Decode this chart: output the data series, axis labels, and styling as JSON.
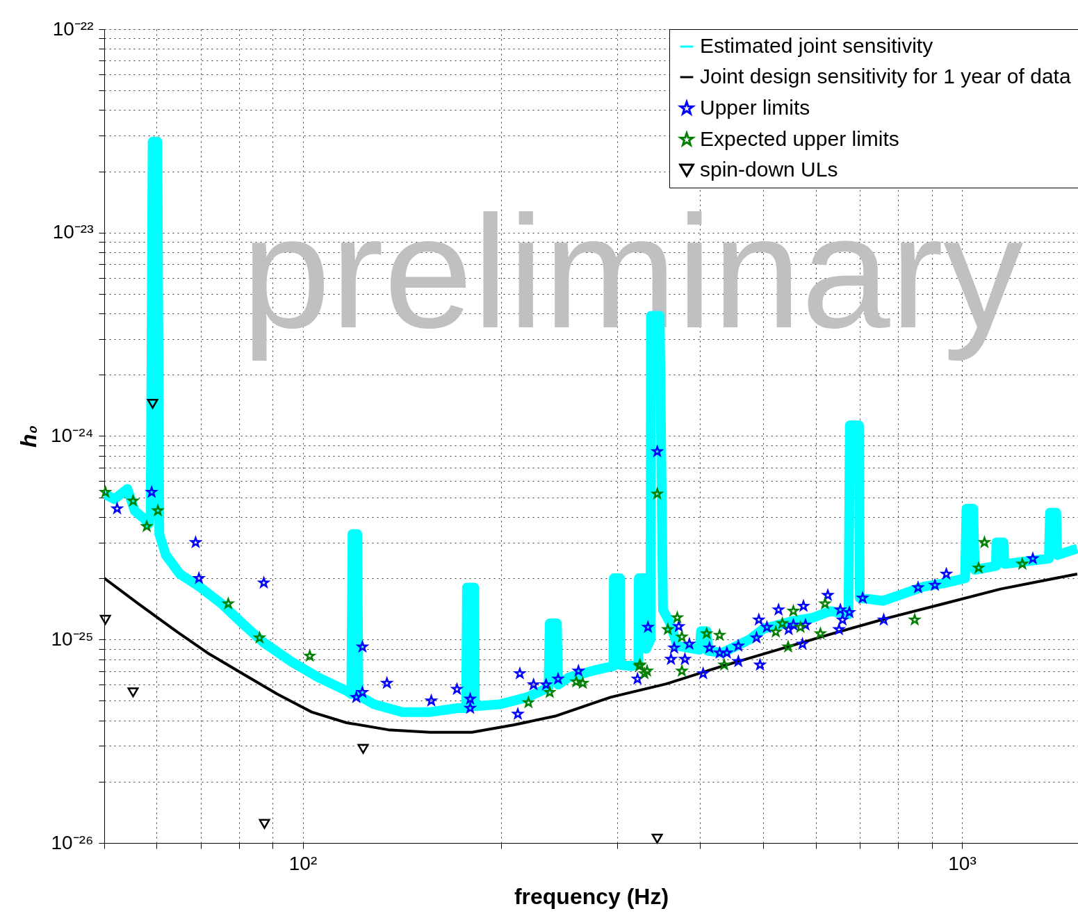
{
  "chart_data": {
    "type": "line",
    "xlabel": "frequency (Hz)",
    "ylabel": "h₀",
    "annotations": [
      "preliminary"
    ],
    "log": "xy",
    "grid": true,
    "legend": "top right",
    "xlim": [
      50,
      1500
    ],
    "ylim": [
      1e-26,
      1e-22
    ],
    "xticks": [
      {
        "value": 50,
        "label": null
      },
      {
        "value": 60,
        "label": null
      },
      {
        "value": 70,
        "label": null
      },
      {
        "value": 80,
        "label": null
      },
      {
        "value": 90,
        "label": null
      },
      {
        "value": 100,
        "label": "10²"
      },
      {
        "value": 200,
        "label": null
      },
      {
        "value": 300,
        "label": null
      },
      {
        "value": 400,
        "label": null
      },
      {
        "value": 500,
        "label": null
      },
      {
        "value": 600,
        "label": null
      },
      {
        "value": 700,
        "label": null
      },
      {
        "value": 800,
        "label": null
      },
      {
        "value": 900,
        "label": null
      },
      {
        "value": 1000,
        "label": "10³"
      }
    ],
    "yticks": [
      {
        "value": 1e-26,
        "label": "10⁻²⁶"
      },
      {
        "value": 2e-26,
        "label": null
      },
      {
        "value": 3e-26,
        "label": null
      },
      {
        "value": 4e-26,
        "label": null
      },
      {
        "value": 5e-26,
        "label": null
      },
      {
        "value": 6e-26,
        "label": null
      },
      {
        "value": 7e-26,
        "label": null
      },
      {
        "value": 8e-26,
        "label": null
      },
      {
        "value": 9e-26,
        "label": null
      },
      {
        "value": 1e-25,
        "label": "10⁻²⁵"
      },
      {
        "value": 2e-25,
        "label": null
      },
      {
        "value": 3e-25,
        "label": null
      },
      {
        "value": 4e-25,
        "label": null
      },
      {
        "value": 5e-25,
        "label": null
      },
      {
        "value": 6e-25,
        "label": null
      },
      {
        "value": 7e-25,
        "label": null
      },
      {
        "value": 8e-25,
        "label": null
      },
      {
        "value": 9e-25,
        "label": null
      },
      {
        "value": 1e-24,
        "label": "10⁻²⁴"
      },
      {
        "value": 2e-24,
        "label": null
      },
      {
        "value": 3e-24,
        "label": null
      },
      {
        "value": 4e-24,
        "label": null
      },
      {
        "value": 5e-24,
        "label": null
      },
      {
        "value": 6e-24,
        "label": null
      },
      {
        "value": 7e-24,
        "label": null
      },
      {
        "value": 8e-24,
        "label": null
      },
      {
        "value": 9e-24,
        "label": null
      },
      {
        "value": 1e-23,
        "label": "10⁻²³"
      },
      {
        "value": 2e-23,
        "label": null
      },
      {
        "value": 3e-23,
        "label": null
      },
      {
        "value": 4e-23,
        "label": null
      },
      {
        "value": 5e-23,
        "label": null
      },
      {
        "value": 6e-23,
        "label": null
      },
      {
        "value": 7e-23,
        "label": null
      },
      {
        "value": 8e-23,
        "label": null
      },
      {
        "value": 9e-23,
        "label": null
      },
      {
        "value": 1e-22,
        "label": "10⁻²²"
      }
    ],
    "series": [
      {
        "name": "Estimated joint sensitivity",
        "marker": "none",
        "color": "#00ffff",
        "x": [
          50,
          51.8,
          54.2,
          55.6,
          57.6,
          58.4,
          58.8,
          59.2,
          60.2,
          60.6,
          62.0,
          65.1,
          70.0,
          75.3,
          81.0,
          87.1,
          96.0,
          105.7,
          116.5,
          118.5,
          119,
          121,
          121.5,
          128.4,
          141.6,
          156,
          171.9,
          177,
          177.5,
          182,
          182.5,
          199,
          219,
          236,
          237,
          243,
          244,
          253,
          279,
          296,
          296.5,
          303,
          303.5,
          315,
          323,
          323.5,
          331,
          332,
          337,
          337.5,
          348,
          352,
          361,
          370,
          400,
          402,
          410,
          412,
          433,
          476,
          500,
          552,
          594,
          632,
          673,
          676,
          698,
          700,
          759,
          815,
          875,
          938,
          1011,
          1016,
          1040,
          1046,
          1126,
          1128,
          1156,
          1160,
          1355,
          1360,
          1390,
          1395,
          1496
        ],
        "values": [
          5.2e-25,
          4.9e-25,
          5.5e-25,
          4.3e-25,
          3.9e-25,
          3.7e-25,
          4.2e-25,
          2.8e-23,
          2.8e-23,
          3.3e-25,
          2.6e-25,
          2.1e-25,
          1.8e-25,
          1.5e-25,
          1.2e-25,
          9.7e-26,
          7.8e-26,
          6.5e-26,
          5.6e-26,
          5.4e-26,
          3.3e-25,
          3.3e-25,
          5.3e-26,
          4.8e-26,
          4.4e-26,
          4.4e-26,
          4.6e-26,
          4.6e-26,
          1.8e-25,
          1.8e-25,
          4.7e-26,
          4.8e-26,
          5.2e-26,
          5.8e-26,
          1.2e-25,
          1.2e-25,
          6e-26,
          6.5e-26,
          7.1e-26,
          7.4e-26,
          2e-25,
          2e-25,
          7.5e-26,
          7.4e-26,
          7.6e-26,
          2e-25,
          2e-25,
          9e-26,
          1e-25,
          3.9e-24,
          3.9e-24,
          1.4e-25,
          1.2e-25,
          9.3e-26,
          8.9e-26,
          1.1e-25,
          1.1e-25,
          8.8e-26,
          8.6e-26,
          1e-25,
          1.13e-25,
          1.23e-25,
          1.28e-25,
          1.38e-25,
          1.33e-25,
          1.13e-24,
          1.13e-24,
          1.6e-25,
          1.55e-25,
          1.68e-25,
          1.82e-25,
          1.89e-25,
          2e-25,
          4.4e-25,
          4.4e-25,
          2.2e-25,
          2.3e-25,
          3e-25,
          3e-25,
          2.35e-25,
          2.5e-25,
          4.2e-25,
          4.2e-25,
          2.6e-25,
          2.8e-25
        ]
      },
      {
        "name": "Joint design sensitivity for 1 year of data",
        "marker": "none",
        "color": "#000000",
        "x": [
          50,
          56.3,
          63.5,
          71.7,
          81.0,
          91.4,
          103.2,
          116.5,
          134.8,
          156,
          180.6,
          208.7,
          241.5,
          293,
          356,
          433,
          525,
          637,
          775,
          938,
          1144,
          1496
        ],
        "values": [
          2e-25,
          1.5e-25,
          1.13e-25,
          8.6e-26,
          6.8e-26,
          5.4e-26,
          4.4e-26,
          3.9e-26,
          3.6e-26,
          3.5e-26,
          3.5e-26,
          3.8e-26,
          4.2e-26,
          5.2e-26,
          6.05e-26,
          7.4e-26,
          8.9e-26,
          1.07e-25,
          1.28e-25,
          1.5e-25,
          1.77e-25,
          2.1e-25
        ]
      },
      {
        "name": "Upper limits",
        "type": "scatter",
        "marker": "star",
        "color": "#0000ff",
        "x": [
          52.3,
          59.0,
          68.8,
          69.6,
          87.3,
          123.2,
          120.6,
          123.2,
          134.2,
          156.7,
          171.4,
          179.5,
          179.5,
          212,
          213.5,
          224,
          234,
          244,
          262,
          322,
          334,
          345,
          372,
          366,
          386,
          362,
          380,
          405,
          414,
          429,
          440,
          458,
          458,
          488,
          492,
          494,
          506,
          527,
          546,
          555,
          575,
          579,
          573,
          626,
          654,
          659,
          651,
          675,
          707,
          761,
          858,
          910,
          947,
          1281
        ],
        "values": [
          4.4e-25,
          5.3e-25,
          3e-25,
          2e-25,
          1.9e-25,
          9.2e-26,
          5.2e-26,
          5.5e-26,
          6.1e-26,
          5e-26,
          5.7e-26,
          5.1e-26,
          4.6e-26,
          4.3e-26,
          6.8e-26,
          6e-26,
          6e-26,
          6.4e-26,
          7e-26,
          6.4e-26,
          1.15e-25,
          8.4e-25,
          1.16e-25,
          9.1e-26,
          9.5e-26,
          8e-26,
          8e-26,
          6.8e-26,
          9.1e-26,
          8.6e-26,
          8.6e-26,
          9.3e-26,
          7.8e-26,
          1.02e-25,
          1.25e-25,
          7.5e-26,
          1.15e-25,
          1.4e-25,
          1.12e-25,
          1.18e-25,
          1.46e-25,
          1.18e-25,
          9.5e-26,
          1.65e-25,
          1.4e-25,
          1.25e-25,
          1.12e-25,
          1.36e-25,
          1.6e-25,
          1.25e-25,
          1.8e-25,
          1.85e-25,
          2.1e-25,
          2.5e-25
        ]
      },
      {
        "name": "Expected upper limits",
        "type": "scatter",
        "marker": "star",
        "color": "#007f00",
        "x": [
          50.2,
          55.3,
          58.0,
          60.3,
          77.1,
          86.0,
          102.5,
          220,
          237,
          260,
          266,
          324,
          333,
          345,
          325,
          330,
          358,
          370,
          376,
          376,
          410,
          429,
          436,
          522,
          534,
          555,
          545,
          569,
          610,
          620,
          848,
          1082,
          1060,
          1235
        ],
        "values": [
          5.3e-25,
          4.8e-25,
          3.6e-25,
          4.3e-25,
          1.5e-25,
          1.02e-25,
          8.3e-26,
          4.9e-26,
          5.5e-26,
          6.2e-26,
          6.1e-26,
          7.4e-26,
          7e-26,
          5.2e-25,
          7.5e-26,
          6.8e-26,
          1.12e-25,
          1.28e-25,
          1.03e-25,
          7e-26,
          1.07e-25,
          1.05e-25,
          7.5e-26,
          1.09e-25,
          1.2e-25,
          1.38e-25,
          9.2e-26,
          1.15e-25,
          1.07e-25,
          1.5e-25,
          1.25e-25,
          3e-25,
          2.25e-25,
          2.35e-25
        ]
      },
      {
        "name": "spin-down ULs",
        "type": "scatter",
        "marker": "triangle",
        "color": "#000000",
        "x": [
          59.2,
          50.2,
          55.3,
          123.5,
          87.5,
          345
        ],
        "values": [
          1.44e-24,
          1.25e-25,
          5.5e-26,
          2.9e-26,
          1.24e-26,
          1.05e-26
        ]
      }
    ]
  }
}
